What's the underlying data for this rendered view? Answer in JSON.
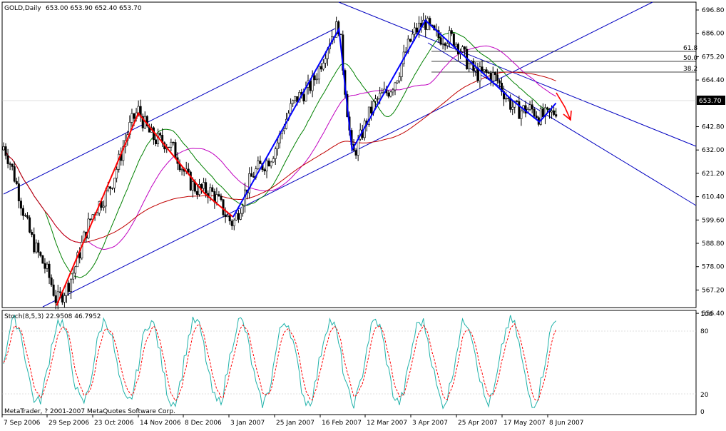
{
  "header": {
    "symbol_label": "GOLD,Daily",
    "ohlc": "653.00 653.90 652.40 653.70"
  },
  "stochastic": {
    "label": "Stoch(8,5,3) 22.9508 46.7952",
    "yticks": [
      "100",
      "80",
      "20",
      "0"
    ],
    "main_color": "#20b2aa",
    "signal_color": "#ff0000"
  },
  "copyright": "MetaTrader, ? 2001-2007 MetaQuotes Software Corp.",
  "price_tag": "653.70",
  "fib_labels": [
    "61.8",
    "50.0",
    "38.2"
  ],
  "colors": {
    "bull_candle": "#ffffff",
    "bear_candle": "#000000",
    "ma_fast": "#008000",
    "ma_mid": "#c000c0",
    "ma_slow": "#c00000",
    "zigzag_1": "#ff0000",
    "zigzag_2": "#0000ff",
    "channel": "#0000c0"
  },
  "chart_data": {
    "type": "candlestick",
    "instrument": "GOLD",
    "timeframe": "Daily",
    "y_ticks": [
      "696.80",
      "686.00",
      "675.20",
      "664.40",
      "653.70",
      "642.80",
      "632.00",
      "621.20",
      "610.40",
      "599.60",
      "588.80",
      "578.00",
      "567.20",
      "556.40"
    ],
    "ylim": [
      556.4,
      696.8
    ],
    "x_ticks": [
      "7 Sep 2006",
      "29 Sep 2006",
      "23 Oct 2006",
      "14 Nov 2006",
      "8 Dec 2006",
      "3 Jan 2007",
      "25 Jan 2007",
      "16 Feb 2007",
      "12 Mar 2007",
      "3 Apr 2007",
      "25 Apr 2007",
      "17 May 2007",
      "8 Jun 2007"
    ],
    "key_pivots": [
      {
        "date": "7 Sep 2006",
        "price": 634
      },
      {
        "date": "4 Oct 2006",
        "price": 560
      },
      {
        "date": "14 Nov 2006",
        "price": 649
      },
      {
        "date": "20 Dec 2006",
        "price": 612
      },
      {
        "date": "5 Jan 2007",
        "price": 601
      },
      {
        "date": "26 Feb 2007",
        "price": 688
      },
      {
        "date": "5 Mar 2007",
        "price": 632
      },
      {
        "date": "10 Apr 2007",
        "price": 692
      },
      {
        "date": "22 May 2007",
        "price": 655
      },
      {
        "date": "4 Jun 2007",
        "price": 645
      },
      {
        "date": "12 Jun 2007",
        "price": 653.7
      }
    ]
  }
}
